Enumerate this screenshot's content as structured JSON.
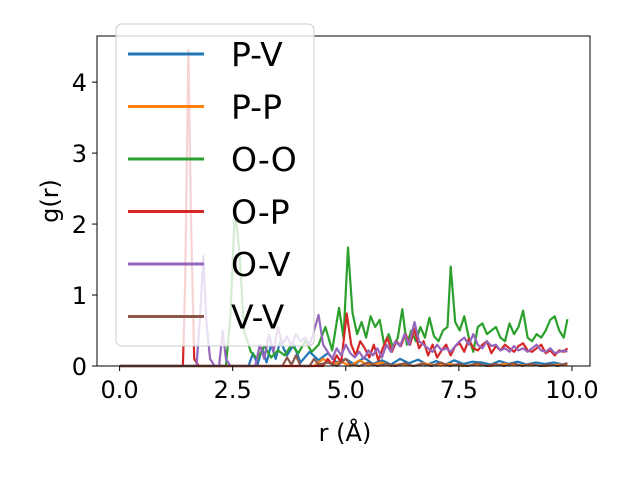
{
  "chart_data": {
    "type": "line",
    "xlabel": "r (Å)",
    "ylabel": "g(r)",
    "xlim": [
      -0.5,
      10.4
    ],
    "ylim": [
      0,
      4.65
    ],
    "xticks": [
      0.0,
      2.5,
      5.0,
      7.5,
      10.0
    ],
    "xtick_labels": [
      "0.0",
      "2.5",
      "5.0",
      "7.5",
      "10.0"
    ],
    "yticks": [
      0,
      1,
      2,
      3,
      4
    ],
    "ytick_labels": [
      "0",
      "1",
      "2",
      "3",
      "4"
    ],
    "grid": false,
    "legend_position": "top-left",
    "series": [
      {
        "name": "P-V",
        "color": "#1f77b4",
        "points": [
          [
            0,
            0
          ],
          [
            2.85,
            0
          ],
          [
            2.95,
            0.18
          ],
          [
            3.05,
            0.02
          ],
          [
            3.15,
            0.25
          ],
          [
            3.25,
            0.05
          ],
          [
            3.35,
            0.3
          ],
          [
            3.45,
            0.1
          ],
          [
            3.55,
            0.35
          ],
          [
            3.7,
            0.15
          ],
          [
            3.85,
            0.3
          ],
          [
            4.0,
            0.05
          ],
          [
            4.2,
            0.2
          ],
          [
            4.4,
            0.08
          ],
          [
            4.6,
            0.18
          ],
          [
            4.8,
            0.05
          ],
          [
            5.0,
            0.1
          ],
          [
            5.2,
            0.02
          ],
          [
            5.4,
            0.12
          ],
          [
            5.6,
            0.03
          ],
          [
            5.8,
            0.08
          ],
          [
            6.0,
            0.02
          ],
          [
            6.2,
            0.1
          ],
          [
            6.4,
            0.04
          ],
          [
            6.6,
            0.09
          ],
          [
            6.8,
            0.02
          ],
          [
            7.0,
            0.07
          ],
          [
            7.2,
            0.02
          ],
          [
            7.4,
            0.08
          ],
          [
            7.6,
            0.03
          ],
          [
            7.8,
            0.06
          ],
          [
            8.0,
            0.05
          ],
          [
            8.2,
            0.02
          ],
          [
            8.4,
            0.07
          ],
          [
            8.6,
            0.03
          ],
          [
            8.8,
            0.06
          ],
          [
            9.0,
            0.02
          ],
          [
            9.2,
            0.05
          ],
          [
            9.4,
            0.03
          ],
          [
            9.6,
            0.05
          ],
          [
            9.8,
            0.02
          ],
          [
            9.9,
            0.04
          ]
        ]
      },
      {
        "name": "P-P",
        "color": "#ff7f0e",
        "points": [
          [
            0,
            0
          ],
          [
            4.3,
            0
          ],
          [
            4.5,
            0.1
          ],
          [
            4.7,
            0.02
          ],
          [
            4.9,
            0.06
          ],
          [
            5.1,
            0
          ],
          [
            5.3,
            0.08
          ],
          [
            5.5,
            0.01
          ],
          [
            5.8,
            0.05
          ],
          [
            6.0,
            0
          ],
          [
            6.2,
            0.03
          ],
          [
            6.5,
            0
          ],
          [
            6.7,
            0.04
          ],
          [
            7.0,
            0.01
          ],
          [
            7.3,
            0.03
          ],
          [
            7.6,
            0
          ],
          [
            7.9,
            0.02
          ],
          [
            8.2,
            0
          ],
          [
            8.5,
            0.03
          ],
          [
            8.8,
            0.01
          ],
          [
            9.1,
            0.02
          ],
          [
            9.4,
            0
          ],
          [
            9.7,
            0.02
          ],
          [
            9.9,
            0.01
          ]
        ]
      },
      {
        "name": "O-O",
        "color": "#2ca02c",
        "points": [
          [
            0,
            0
          ],
          [
            2.35,
            0
          ],
          [
            2.45,
            0.7
          ],
          [
            2.55,
            2.2
          ],
          [
            2.65,
            1.6
          ],
          [
            2.75,
            0.5
          ],
          [
            2.9,
            0.2
          ],
          [
            3.05,
            0.1
          ],
          [
            3.2,
            0.28
          ],
          [
            3.35,
            0.12
          ],
          [
            3.5,
            0.22
          ],
          [
            3.65,
            0.15
          ],
          [
            3.8,
            0.3
          ],
          [
            3.95,
            0.18
          ],
          [
            4.1,
            0.35
          ],
          [
            4.25,
            0.2
          ],
          [
            4.4,
            0.3
          ],
          [
            4.55,
            0.55
          ],
          [
            4.7,
            0.22
          ],
          [
            4.85,
            0.82
          ],
          [
            4.95,
            0.4
          ],
          [
            5.05,
            1.67
          ],
          [
            5.15,
            0.75
          ],
          [
            5.25,
            0.45
          ],
          [
            5.35,
            0.62
          ],
          [
            5.45,
            0.4
          ],
          [
            5.55,
            0.7
          ],
          [
            5.65,
            0.55
          ],
          [
            5.75,
            0.65
          ],
          [
            5.85,
            0.3
          ],
          [
            5.95,
            0.45
          ],
          [
            6.05,
            0.25
          ],
          [
            6.15,
            0.4
          ],
          [
            6.25,
            0.8
          ],
          [
            6.35,
            0.3
          ],
          [
            6.45,
            0.5
          ],
          [
            6.55,
            0.35
          ],
          [
            6.65,
            0.55
          ],
          [
            6.75,
            0.4
          ],
          [
            6.85,
            0.68
          ],
          [
            6.95,
            0.42
          ],
          [
            7.05,
            0.35
          ],
          [
            7.15,
            0.5
          ],
          [
            7.25,
            0.55
          ],
          [
            7.32,
            1.4
          ],
          [
            7.42,
            0.62
          ],
          [
            7.52,
            0.5
          ],
          [
            7.62,
            0.7
          ],
          [
            7.72,
            0.4
          ],
          [
            7.82,
            0.2
          ],
          [
            7.92,
            0.55
          ],
          [
            8.02,
            0.6
          ],
          [
            8.12,
            0.45
          ],
          [
            8.22,
            0.5
          ],
          [
            8.32,
            0.55
          ],
          [
            8.42,
            0.4
          ],
          [
            8.52,
            0.35
          ],
          [
            8.62,
            0.6
          ],
          [
            8.72,
            0.45
          ],
          [
            8.82,
            0.55
          ],
          [
            8.92,
            0.78
          ],
          [
            9.02,
            0.4
          ],
          [
            9.12,
            0.35
          ],
          [
            9.22,
            0.45
          ],
          [
            9.32,
            0.4
          ],
          [
            9.42,
            0.5
          ],
          [
            9.52,
            0.65
          ],
          [
            9.62,
            0.7
          ],
          [
            9.72,
            0.5
          ],
          [
            9.82,
            0.4
          ],
          [
            9.9,
            0.66
          ]
        ]
      },
      {
        "name": "O-P",
        "color": "#d62728",
        "points": [
          [
            0,
            0
          ],
          [
            1.4,
            0
          ],
          [
            1.45,
            1.2
          ],
          [
            1.52,
            4.45
          ],
          [
            1.58,
            2.0
          ],
          [
            1.65,
            0.1
          ],
          [
            1.75,
            0
          ],
          [
            4.5,
            0
          ],
          [
            4.6,
            0.1
          ],
          [
            4.7,
            0.02
          ],
          [
            4.8,
            0.15
          ],
          [
            4.9,
            0.05
          ],
          [
            5.02,
            0.74
          ],
          [
            5.12,
            0.3
          ],
          [
            5.22,
            0.15
          ],
          [
            5.32,
            0.35
          ],
          [
            5.42,
            0.25
          ],
          [
            5.52,
            0.12
          ],
          [
            5.62,
            0.3
          ],
          [
            5.72,
            0.08
          ],
          [
            5.82,
            0.25
          ],
          [
            5.92,
            0.4
          ],
          [
            6.02,
            0.2
          ],
          [
            6.12,
            0.35
          ],
          [
            6.22,
            0.28
          ],
          [
            6.32,
            0.45
          ],
          [
            6.42,
            0.3
          ],
          [
            6.52,
            0.52
          ],
          [
            6.62,
            0.25
          ],
          [
            6.72,
            0.35
          ],
          [
            6.82,
            0.15
          ],
          [
            6.92,
            0.3
          ],
          [
            7.02,
            0.12
          ],
          [
            7.12,
            0.22
          ],
          [
            7.22,
            0.3
          ],
          [
            7.32,
            0.15
          ],
          [
            7.42,
            0.28
          ],
          [
            7.52,
            0.32
          ],
          [
            7.62,
            0.2
          ],
          [
            7.72,
            0.38
          ],
          [
            7.82,
            0.25
          ],
          [
            7.92,
            0.22
          ],
          [
            8.02,
            0.3
          ],
          [
            8.12,
            0.35
          ],
          [
            8.22,
            0.18
          ],
          [
            8.32,
            0.28
          ],
          [
            8.42,
            0.22
          ],
          [
            8.52,
            0.3
          ],
          [
            8.62,
            0.25
          ],
          [
            8.72,
            0.2
          ],
          [
            8.82,
            0.28
          ],
          [
            8.92,
            0.32
          ],
          [
            9.02,
            0.22
          ],
          [
            9.12,
            0.2
          ],
          [
            9.22,
            0.25
          ],
          [
            9.32,
            0.3
          ],
          [
            9.42,
            0.18
          ],
          [
            9.52,
            0.22
          ],
          [
            9.62,
            0.15
          ],
          [
            9.72,
            0.22
          ],
          [
            9.82,
            0.2
          ],
          [
            9.9,
            0.25
          ]
        ]
      },
      {
        "name": "O-V",
        "color": "#9467bd",
        "points": [
          [
            0,
            0
          ],
          [
            1.7,
            0
          ],
          [
            1.78,
            0.7
          ],
          [
            1.85,
            1.55
          ],
          [
            1.92,
            0.6
          ],
          [
            2.0,
            0.1
          ],
          [
            2.1,
            0
          ],
          [
            2.2,
            0
          ],
          [
            2.28,
            0.5
          ],
          [
            2.35,
            0.1
          ],
          [
            2.45,
            0
          ],
          [
            3.0,
            0
          ],
          [
            3.1,
            0.3
          ],
          [
            3.2,
            0.1
          ],
          [
            3.3,
            0.45
          ],
          [
            3.4,
            0.2
          ],
          [
            3.5,
            0.55
          ],
          [
            3.6,
            0.3
          ],
          [
            3.7,
            0.42
          ],
          [
            3.8,
            0.28
          ],
          [
            3.9,
            0.45
          ],
          [
            4.0,
            0.35
          ],
          [
            4.1,
            0.4
          ],
          [
            4.2,
            0.3
          ],
          [
            4.3,
            0.5
          ],
          [
            4.4,
            0.72
          ],
          [
            4.5,
            0.3
          ],
          [
            4.6,
            0.2
          ],
          [
            4.7,
            0.1
          ],
          [
            4.8,
            0.25
          ],
          [
            4.9,
            0.15
          ],
          [
            5.0,
            0.3
          ],
          [
            5.1,
            0.18
          ],
          [
            5.2,
            0.12
          ],
          [
            5.3,
            0.2
          ],
          [
            5.4,
            0.1
          ],
          [
            5.5,
            0.22
          ],
          [
            5.6,
            0.15
          ],
          [
            5.7,
            0.25
          ],
          [
            5.8,
            0.12
          ],
          [
            5.9,
            0.3
          ],
          [
            6.0,
            0.2
          ],
          [
            6.1,
            0.35
          ],
          [
            6.2,
            0.28
          ],
          [
            6.3,
            0.45
          ],
          [
            6.4,
            0.3
          ],
          [
            6.52,
            0.62
          ],
          [
            6.62,
            0.35
          ],
          [
            6.72,
            0.3
          ],
          [
            6.82,
            0.25
          ],
          [
            6.92,
            0.2
          ],
          [
            7.02,
            0.3
          ],
          [
            7.12,
            0.22
          ],
          [
            7.22,
            0.25
          ],
          [
            7.32,
            0.2
          ],
          [
            7.42,
            0.28
          ],
          [
            7.52,
            0.35
          ],
          [
            7.62,
            0.4
          ],
          [
            7.72,
            0.3
          ],
          [
            7.82,
            0.45
          ],
          [
            7.92,
            0.3
          ],
          [
            8.02,
            0.25
          ],
          [
            8.12,
            0.35
          ],
          [
            8.22,
            0.28
          ],
          [
            8.32,
            0.3
          ],
          [
            8.42,
            0.22
          ],
          [
            8.52,
            0.25
          ],
          [
            8.62,
            0.2
          ],
          [
            8.72,
            0.28
          ],
          [
            8.82,
            0.22
          ],
          [
            8.92,
            0.25
          ],
          [
            9.02,
            0.2
          ],
          [
            9.12,
            0.25
          ],
          [
            9.22,
            0.3
          ],
          [
            9.32,
            0.22
          ],
          [
            9.42,
            0.2
          ],
          [
            9.52,
            0.25
          ],
          [
            9.62,
            0.18
          ],
          [
            9.72,
            0.2
          ],
          [
            9.82,
            0.22
          ],
          [
            9.9,
            0.2
          ]
        ]
      },
      {
        "name": "V-V",
        "color": "#8c564b",
        "points": [
          [
            0,
            0
          ],
          [
            3.6,
            0
          ],
          [
            3.7,
            0.12
          ],
          [
            3.8,
            0.02
          ],
          [
            3.9,
            0.15
          ],
          [
            4.0,
            0
          ],
          [
            4.2,
            0
          ],
          [
            4.3,
            0.1
          ],
          [
            4.4,
            0.02
          ],
          [
            4.6,
            0.05
          ],
          [
            4.8,
            0
          ],
          [
            5.0,
            0.1
          ],
          [
            5.1,
            0.02
          ],
          [
            5.3,
            0
          ],
          [
            5.5,
            0.05
          ],
          [
            5.7,
            0
          ],
          [
            5.9,
            0.03
          ],
          [
            6.1,
            0
          ],
          [
            6.3,
            0.04
          ],
          [
            6.5,
            0
          ],
          [
            6.7,
            0.03
          ],
          [
            6.9,
            0
          ],
          [
            7.1,
            0.05
          ],
          [
            7.3,
            0
          ],
          [
            7.5,
            0.03
          ],
          [
            7.7,
            0
          ],
          [
            7.9,
            0.04
          ],
          [
            8.1,
            0
          ],
          [
            8.3,
            0.03
          ],
          [
            8.5,
            0
          ],
          [
            8.7,
            0.04
          ],
          [
            8.9,
            0
          ],
          [
            9.1,
            0.03
          ],
          [
            9.3,
            0
          ],
          [
            9.5,
            0.02
          ],
          [
            9.7,
            0
          ],
          [
            9.9,
            0.04
          ]
        ]
      }
    ]
  }
}
